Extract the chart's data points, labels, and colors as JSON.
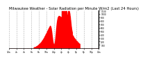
{
  "title": "Milwaukee Weather - Solar Radiation per Minute W/m2 (Last 24 Hours)",
  "title_fontsize": 3.8,
  "background_color": "#ffffff",
  "plot_bg_color": "#ffffff",
  "bar_color": "#ff0000",
  "grid_color": "#999999",
  "ylim": [
    0,
    1100
  ],
  "yticks": [
    100,
    200,
    300,
    400,
    500,
    600,
    700,
    800,
    900,
    1000,
    1100
  ],
  "xlim": [
    0,
    1440
  ],
  "num_points": 1440,
  "peak_minute": 780,
  "peak_value": 970,
  "sunrise_minute": 390,
  "sunset_minute": 1140
}
